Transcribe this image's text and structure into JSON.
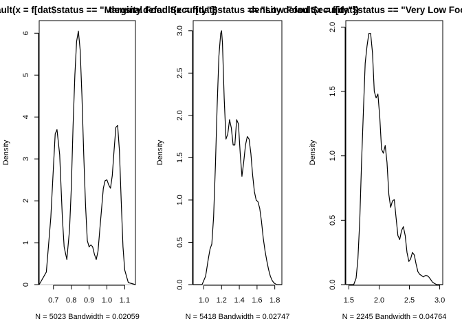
{
  "chart_data": [
    {
      "type": "line",
      "title": "density.default(x = f[dat$status == \"Marginal Food Security\"])",
      "ylabel": "Density",
      "xlabel": "N = 5023   Bandwidth = 0.02059",
      "xlim": [
        0.62,
        1.16
      ],
      "ylim": [
        0,
        6.3
      ],
      "xticks": [
        0.7,
        0.8,
        0.9,
        1.0,
        1.1
      ],
      "xtick_labels": [
        "0.7",
        "0.8",
        "0.9",
        "1.0",
        "1.1"
      ],
      "yticks": [
        0,
        1,
        2,
        3,
        4,
        5,
        6
      ],
      "ytick_labels": [
        "0",
        "1",
        "2",
        "3",
        "4",
        "5",
        "6"
      ],
      "series": [
        {
          "x": [
            0.62,
            0.66,
            0.685,
            0.7,
            0.71,
            0.72,
            0.735,
            0.75,
            0.76,
            0.775,
            0.79,
            0.8,
            0.81,
            0.82,
            0.83,
            0.84,
            0.85,
            0.86,
            0.87,
            0.88,
            0.89,
            0.9,
            0.91,
            0.92,
            0.93,
            0.94,
            0.95,
            0.96,
            0.97,
            0.98,
            0.99,
            1.0,
            1.01,
            1.02,
            1.03,
            1.04,
            1.05,
            1.06,
            1.07,
            1.08,
            1.09,
            1.1,
            1.12,
            1.16
          ],
          "y": [
            0,
            0.3,
            1.6,
            2.8,
            3.6,
            3.7,
            3.1,
            1.6,
            0.9,
            0.6,
            1.3,
            2.3,
            3.8,
            5.0,
            5.8,
            6.05,
            5.6,
            4.5,
            3.1,
            1.9,
            1.05,
            0.9,
            0.95,
            0.9,
            0.72,
            0.6,
            0.8,
            1.3,
            1.8,
            2.3,
            2.48,
            2.5,
            2.38,
            2.3,
            2.6,
            3.2,
            3.75,
            3.8,
            3.2,
            2.0,
            0.9,
            0.35,
            0.05,
            0
          ]
        }
      ]
    },
    {
      "type": "line",
      "title": "density.default(x = f[dat$status == \"Low Food Security\"])",
      "ylabel": "Density",
      "xlabel": "N = 5418   Bandwidth = 0.02747",
      "xlim": [
        0.88,
        1.88
      ],
      "ylim": [
        0,
        3.12
      ],
      "xticks": [
        1.0,
        1.2,
        1.4,
        1.6,
        1.8
      ],
      "xtick_labels": [
        "1.0",
        "1.2",
        "1.4",
        "1.6",
        "1.8"
      ],
      "yticks": [
        0,
        0.5,
        1.0,
        1.5,
        2.0,
        2.5,
        3.0
      ],
      "ytick_labels": [
        "0.0",
        "0.5",
        "1.0",
        "1.5",
        "2.0",
        "2.5",
        "3.0"
      ],
      "series": [
        {
          "x": [
            0.88,
            0.98,
            1.02,
            1.05,
            1.07,
            1.09,
            1.11,
            1.13,
            1.15,
            1.17,
            1.19,
            1.2,
            1.21,
            1.23,
            1.25,
            1.27,
            1.29,
            1.31,
            1.33,
            1.35,
            1.37,
            1.39,
            1.41,
            1.43,
            1.45,
            1.47,
            1.49,
            1.51,
            1.53,
            1.55,
            1.57,
            1.59,
            1.61,
            1.63,
            1.65,
            1.67,
            1.69,
            1.71,
            1.73,
            1.75,
            1.77,
            1.79,
            1.82,
            1.88
          ],
          "y": [
            0,
            0,
            0.1,
            0.3,
            0.42,
            0.48,
            0.8,
            1.4,
            2.1,
            2.7,
            2.97,
            3.0,
            2.85,
            2.2,
            1.72,
            1.78,
            1.95,
            1.85,
            1.65,
            1.65,
            1.95,
            1.9,
            1.55,
            1.28,
            1.45,
            1.65,
            1.75,
            1.72,
            1.55,
            1.3,
            1.1,
            1.0,
            0.98,
            0.9,
            0.75,
            0.55,
            0.4,
            0.28,
            0.18,
            0.1,
            0.05,
            0.02,
            0,
            0
          ]
        }
      ]
    },
    {
      "type": "line",
      "title": "density.default(x = f[dat$status == \"Very Low Food Security\"])",
      "ylabel": "Density",
      "xlabel": "N = 2245   Bandwidth = 0.04764",
      "xlim": [
        1.45,
        3.05
      ],
      "ylim": [
        0,
        2.05
      ],
      "xticks": [
        1.5,
        2.0,
        2.5,
        3.0
      ],
      "xtick_labels": [
        "1.5",
        "2.0",
        "2.5",
        "3.0"
      ],
      "yticks": [
        0,
        0.5,
        1.0,
        1.5,
        2.0
      ],
      "ytick_labels": [
        "0.0",
        "0.5",
        "1.0",
        "1.5",
        "2.0"
      ],
      "series": [
        {
          "x": [
            1.45,
            1.58,
            1.62,
            1.65,
            1.68,
            1.71,
            1.74,
            1.77,
            1.8,
            1.83,
            1.86,
            1.89,
            1.92,
            1.95,
            1.98,
            2.01,
            2.04,
            2.07,
            2.1,
            2.13,
            2.16,
            2.19,
            2.22,
            2.25,
            2.28,
            2.31,
            2.34,
            2.37,
            2.4,
            2.43,
            2.46,
            2.49,
            2.52,
            2.55,
            2.58,
            2.61,
            2.64,
            2.67,
            2.7,
            2.73,
            2.76,
            2.79,
            2.82,
            2.85,
            2.88,
            2.91,
            2.95,
            3.05
          ],
          "y": [
            0,
            0,
            0.05,
            0.2,
            0.5,
            0.95,
            1.35,
            1.72,
            1.85,
            1.95,
            1.95,
            1.8,
            1.5,
            1.45,
            1.48,
            1.3,
            1.05,
            1.02,
            1.08,
            0.95,
            0.7,
            0.6,
            0.65,
            0.66,
            0.52,
            0.38,
            0.35,
            0.42,
            0.45,
            0.38,
            0.25,
            0.18,
            0.2,
            0.25,
            0.23,
            0.16,
            0.1,
            0.08,
            0.07,
            0.06,
            0.07,
            0.07,
            0.06,
            0.04,
            0.02,
            0.01,
            0,
            0
          ]
        }
      ]
    }
  ]
}
